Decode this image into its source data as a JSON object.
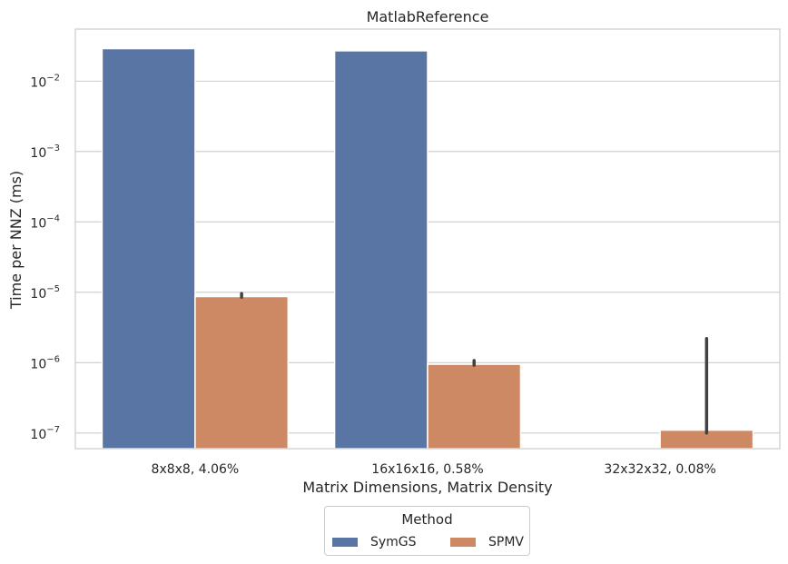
{
  "chart_data": {
    "type": "bar",
    "title": "MatlabReference",
    "xlabel": "Matrix Dimensions, Matrix Density",
    "ylabel": "Time per NNZ (ms)",
    "yscale": "log",
    "ylim": [
      6e-08,
      0.055
    ],
    "yticks": [
      {
        "value": 1e-07,
        "mantissa": "10",
        "exp": "−7"
      },
      {
        "value": 1e-06,
        "mantissa": "10",
        "exp": "−6"
      },
      {
        "value": 1e-05,
        "mantissa": "10",
        "exp": "−5"
      },
      {
        "value": 0.0001,
        "mantissa": "10",
        "exp": "−4"
      },
      {
        "value": 0.001,
        "mantissa": "10",
        "exp": "−3"
      },
      {
        "value": 0.01,
        "mantissa": "10",
        "exp": "−2"
      }
    ],
    "categories": [
      "8x8x8, 4.06%",
      "16x16x16, 0.58%",
      "32x32x32, 0.08%"
    ],
    "grid": true,
    "legend_placement": "bottom-center",
    "series": [
      {
        "name": "SymGS",
        "color": "#5875a4",
        "values": [
          0.029,
          0.027,
          null
        ],
        "error": [
          null,
          null,
          null
        ]
      },
      {
        "name": "SPMV",
        "color": "#cc8963",
        "values": [
          8.7e-06,
          9.5e-07,
          1.1e-07
        ],
        "error": [
          [
            8.5e-06,
            9.6e-06
          ],
          [
            9.2e-07,
            1.07e-06
          ],
          [
            1e-07,
            2.2e-06
          ]
        ]
      }
    ]
  },
  "legend": {
    "title": "Method",
    "items": [
      {
        "label": "SymGS",
        "color": "#5875a4"
      },
      {
        "label": "SPMV",
        "color": "#cc8963"
      }
    ]
  }
}
